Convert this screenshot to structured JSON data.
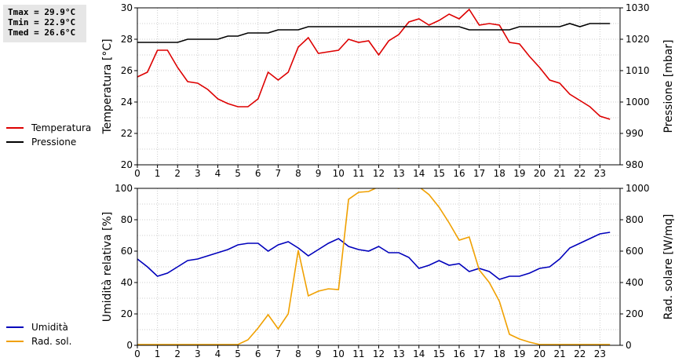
{
  "stats": {
    "tmax": "Tmax = 29.9°C",
    "tmin": "Tmin = 22.9°C",
    "tmed": "Tmed = 26.6°C"
  },
  "chart_data": [
    {
      "type": "line",
      "ylabel": "Temperatura [°C]",
      "y2label": "Pressione [mbar]",
      "xlim": [
        0,
        24
      ],
      "xticks": [
        0,
        1,
        2,
        3,
        4,
        5,
        6,
        7,
        8,
        9,
        10,
        11,
        12,
        13,
        14,
        15,
        16,
        17,
        18,
        19,
        20,
        21,
        22,
        23
      ],
      "ylim": [
        20,
        30
      ],
      "yticks": [
        20,
        22,
        24,
        26,
        28,
        30
      ],
      "y2lim": [
        980,
        1030
      ],
      "y2ticks": [
        980,
        990,
        1000,
        1010,
        1020,
        1030
      ],
      "grid": true,
      "series": [
        {
          "name": "Temperatura",
          "axis": "left",
          "color": "#dd0000",
          "x": [
            0,
            0.5,
            1,
            1.5,
            2,
            2.5,
            3,
            3.5,
            4,
            4.5,
            5,
            5.5,
            6,
            6.5,
            7,
            7.5,
            8,
            8.5,
            9,
            9.5,
            10,
            10.5,
            11,
            11.5,
            12,
            12.5,
            13,
            13.5,
            14,
            14.5,
            15,
            15.5,
            16,
            16.5,
            17,
            17.5,
            18,
            18.5,
            19,
            19.5,
            20,
            20.5,
            21,
            21.5,
            22,
            22.5,
            23,
            23.5
          ],
          "y": [
            25.6,
            25.9,
            27.3,
            27.3,
            26.2,
            25.3,
            25.2,
            24.8,
            24.2,
            23.9,
            23.7,
            23.7,
            24.2,
            25.9,
            25.4,
            25.9,
            27.5,
            28.1,
            27.1,
            27.2,
            27.3,
            28.0,
            27.8,
            27.9,
            27.0,
            27.9,
            28.3,
            29.1,
            29.3,
            28.9,
            29.2,
            29.6,
            29.3,
            29.9,
            28.9,
            29.0,
            28.9,
            27.8,
            27.7,
            26.9,
            26.2,
            25.4,
            25.2,
            24.5,
            24.1,
            23.7,
            23.1,
            22.9
          ]
        },
        {
          "name": "Pressione",
          "axis": "right",
          "color": "#000000",
          "x": [
            0,
            0.5,
            1,
            1.5,
            2,
            2.5,
            3,
            3.5,
            4,
            4.5,
            5,
            5.5,
            6,
            6.5,
            7,
            7.5,
            8,
            8.5,
            9,
            9.5,
            10,
            10.5,
            11,
            11.5,
            12,
            12.5,
            13,
            13.5,
            14,
            14.5,
            15,
            15.5,
            16,
            16.5,
            17,
            17.5,
            18,
            18.5,
            19,
            19.5,
            20,
            20.5,
            21,
            21.5,
            22,
            22.5,
            23,
            23.5
          ],
          "y": [
            1019,
            1019,
            1019,
            1019,
            1019,
            1020,
            1020,
            1020,
            1020,
            1021,
            1021,
            1022,
            1022,
            1022,
            1023,
            1023,
            1023,
            1024,
            1024,
            1024,
            1024,
            1024,
            1024,
            1024,
            1024,
            1024,
            1024,
            1024,
            1024,
            1024,
            1024,
            1024,
            1024,
            1023,
            1023,
            1023,
            1023,
            1023,
            1024,
            1024,
            1024,
            1024,
            1024,
            1025,
            1024,
            1025,
            1025,
            1025
          ]
        }
      ]
    },
    {
      "type": "line",
      "ylabel": "Umidità relativa [%]",
      "y2label": "Rad. solare [W/mq]",
      "xlim": [
        0,
        24
      ],
      "xticks": [
        0,
        1,
        2,
        3,
        4,
        5,
        6,
        7,
        8,
        9,
        10,
        11,
        12,
        13,
        14,
        15,
        16,
        17,
        18,
        19,
        20,
        21,
        22,
        23
      ],
      "ylim": [
        0,
        100
      ],
      "yticks": [
        0,
        20,
        40,
        60,
        80,
        100
      ],
      "y2lim": [
        0,
        1000
      ],
      "y2ticks": [
        0,
        200,
        400,
        600,
        800,
        1000
      ],
      "grid": true,
      "series": [
        {
          "name": "Umidità",
          "axis": "left",
          "color": "#0000bb",
          "x": [
            0,
            0.5,
            1,
            1.5,
            2,
            2.5,
            3,
            3.5,
            4,
            4.5,
            5,
            5.5,
            6,
            6.5,
            7,
            7.5,
            8,
            8.5,
            9,
            9.5,
            10,
            10.5,
            11,
            11.5,
            12,
            12.5,
            13,
            13.5,
            14,
            14.5,
            15,
            15.5,
            16,
            16.5,
            17,
            17.5,
            18,
            18.5,
            19,
            19.5,
            20,
            20.5,
            21,
            21.5,
            22,
            22.5,
            23,
            23.5
          ],
          "y": [
            55,
            50,
            44,
            46,
            50,
            54,
            55,
            57,
            59,
            61,
            64,
            65,
            65,
            60,
            64,
            66,
            62,
            57,
            61,
            65,
            68,
            63,
            61,
            60,
            63,
            59,
            59,
            56,
            49,
            51,
            54,
            51,
            52,
            47,
            49,
            47,
            42,
            44,
            44,
            46,
            49,
            50,
            55,
            62,
            65,
            68,
            71,
            72
          ]
        },
        {
          "name": "Rad. sol.",
          "axis": "right",
          "color": "#f0a000",
          "x": [
            0,
            0.5,
            1,
            1.5,
            2,
            2.5,
            3,
            3.5,
            4,
            4.5,
            5,
            5.5,
            6,
            6.5,
            7,
            7.5,
            8,
            8.5,
            9,
            9.5,
            10,
            10.5,
            11,
            11.5,
            12,
            12.5,
            13,
            13.5,
            14,
            14.5,
            15,
            15.5,
            16,
            16.5,
            17,
            17.5,
            18,
            18.5,
            19,
            19.5,
            20,
            20.5,
            21,
            21.5,
            22,
            22.5,
            23,
            23.5
          ],
          "y": [
            5,
            5,
            5,
            5,
            5,
            5,
            5,
            5,
            5,
            5,
            5,
            35,
            110,
            195,
            105,
            200,
            605,
            315,
            345,
            360,
            355,
            930,
            975,
            980,
            1010,
            1010,
            1000,
            1020,
            1010,
            960,
            880,
            780,
            670,
            690,
            480,
            400,
            280,
            70,
            40,
            20,
            5,
            5,
            5,
            5,
            5,
            5,
            5,
            5
          ]
        }
      ]
    }
  ]
}
